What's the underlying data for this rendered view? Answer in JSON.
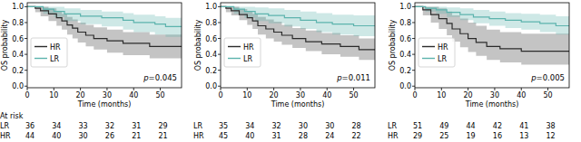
{
  "chart_data": [
    {
      "type": "line",
      "x_label": "Time (months)",
      "y_label": "OS probability",
      "annotation": "p=0.045",
      "legend": "center left",
      "xlim": [
        0,
        58
      ],
      "xticks": [
        0,
        10,
        20,
        30,
        40,
        50
      ],
      "ylim": [
        -0.02,
        1.05
      ],
      "yticks": [
        {
          "value": 0,
          "label": "0.0"
        },
        {
          "value": 0.2,
          "label": "0.2"
        },
        {
          "value": 0.4,
          "label": "0.4"
        },
        {
          "value": 0.6,
          "label": "0.6"
        },
        {
          "value": 0.8,
          "label": "0.8"
        },
        {
          "value": 1,
          "label": "1.0"
        }
      ],
      "series": [
        {
          "name": "HR",
          "color": "#2b2b2b",
          "line_style": "step",
          "x": [
            0,
            3,
            5,
            8,
            11,
            13,
            15,
            17,
            19,
            22,
            25,
            30,
            36,
            46,
            58
          ],
          "values": [
            1.0,
            0.98,
            0.95,
            0.91,
            0.86,
            0.82,
            0.77,
            0.73,
            0.68,
            0.64,
            0.6,
            0.57,
            0.54,
            0.5,
            0.5
          ],
          "lower": [
            1.0,
            0.93,
            0.88,
            0.82,
            0.76,
            0.71,
            0.65,
            0.6,
            0.55,
            0.5,
            0.46,
            0.42,
            0.39,
            0.35,
            0.35
          ],
          "upper": [
            1.0,
            1.0,
            1.0,
            0.98,
            0.94,
            0.91,
            0.87,
            0.84,
            0.8,
            0.77,
            0.74,
            0.71,
            0.68,
            0.65,
            0.65
          ]
        },
        {
          "name": "LR",
          "color": "#5cb3ad",
          "line_style": "step",
          "x": [
            0,
            6,
            10,
            14,
            20,
            28,
            36,
            40,
            48,
            52,
            58
          ],
          "values": [
            1.0,
            0.97,
            0.94,
            0.91,
            0.88,
            0.86,
            0.83,
            0.8,
            0.78,
            0.75,
            0.75
          ],
          "lower": [
            1.0,
            0.91,
            0.87,
            0.82,
            0.78,
            0.75,
            0.71,
            0.68,
            0.65,
            0.62,
            0.62
          ],
          "upper": [
            1.0,
            1.0,
            1.0,
            0.98,
            0.96,
            0.94,
            0.92,
            0.9,
            0.88,
            0.86,
            0.86
          ]
        }
      ],
      "at_risk": {
        "title": "At risk",
        "x": [
          0,
          10,
          20,
          30,
          40,
          50
        ],
        "rows": [
          {
            "name": "LR",
            "values": [
              36,
              34,
              33,
              32,
              31,
              29
            ]
          },
          {
            "name": "HR",
            "values": [
              44,
              40,
              30,
              26,
              21,
              21
            ]
          }
        ]
      }
    },
    {
      "type": "line",
      "x_label": "Time (months)",
      "y_label": "OS probability",
      "annotation": "p=0.011",
      "legend": "center left",
      "xlim": [
        0,
        58
      ],
      "xticks": [
        0,
        10,
        20,
        30,
        40,
        50
      ],
      "ylim": [
        -0.02,
        1.05
      ],
      "yticks": [
        {
          "value": 0,
          "label": "0.0"
        },
        {
          "value": 0.2,
          "label": "0.2"
        },
        {
          "value": 0.4,
          "label": "0.4"
        },
        {
          "value": 0.6,
          "label": "0.6"
        },
        {
          "value": 0.8,
          "label": "0.8"
        },
        {
          "value": 1,
          "label": "1.0"
        }
      ],
      "series": [
        {
          "name": "HR",
          "color": "#2b2b2b",
          "line_style": "step",
          "x": [
            0,
            2,
            4,
            7,
            10,
            12,
            14,
            17,
            20,
            23,
            27,
            32,
            38,
            45,
            52,
            58
          ],
          "values": [
            1.0,
            0.98,
            0.95,
            0.9,
            0.86,
            0.82,
            0.76,
            0.72,
            0.68,
            0.64,
            0.6,
            0.56,
            0.53,
            0.5,
            0.46,
            0.46
          ],
          "lower": [
            1.0,
            0.93,
            0.89,
            0.83,
            0.77,
            0.72,
            0.65,
            0.6,
            0.56,
            0.52,
            0.48,
            0.44,
            0.4,
            0.37,
            0.33,
            0.33
          ],
          "upper": [
            1.0,
            1.0,
            1.0,
            0.97,
            0.94,
            0.91,
            0.87,
            0.84,
            0.81,
            0.77,
            0.73,
            0.7,
            0.67,
            0.64,
            0.6,
            0.6
          ]
        },
        {
          "name": "LR",
          "color": "#5cb3ad",
          "line_style": "step",
          "x": [
            0,
            5,
            9,
            13,
            18,
            24,
            30,
            36,
            42,
            50,
            58
          ],
          "values": [
            1.0,
            0.97,
            0.94,
            0.91,
            0.89,
            0.86,
            0.83,
            0.8,
            0.78,
            0.76,
            0.76
          ],
          "lower": [
            1.0,
            0.91,
            0.86,
            0.82,
            0.79,
            0.75,
            0.72,
            0.68,
            0.65,
            0.63,
            0.63
          ],
          "upper": [
            1.0,
            1.0,
            1.0,
            0.99,
            0.98,
            0.96,
            0.94,
            0.92,
            0.9,
            0.89,
            0.89
          ]
        }
      ],
      "at_risk": {
        "x": [
          0,
          10,
          20,
          30,
          40,
          50
        ],
        "rows": [
          {
            "name": "LR",
            "values": [
              35,
              34,
              32,
              30,
              30,
              28
            ]
          },
          {
            "name": "HR",
            "values": [
              45,
              40,
              31,
              28,
              24,
              22
            ]
          }
        ]
      }
    },
    {
      "type": "line",
      "x_label": "Time (months)",
      "y_label": "OS probability",
      "annotation": "p=0.005",
      "legend": "center left",
      "xlim": [
        0,
        58
      ],
      "xticks": [
        0,
        10,
        20,
        30,
        40,
        50
      ],
      "ylim": [
        -0.02,
        1.05
      ],
      "yticks": [
        {
          "value": 0,
          "label": "0.0"
        },
        {
          "value": 0.2,
          "label": "0.2"
        },
        {
          "value": 0.4,
          "label": "0.4"
        },
        {
          "value": 0.6,
          "label": "0.6"
        },
        {
          "value": 0.8,
          "label": "0.8"
        },
        {
          "value": 1,
          "label": "1.0"
        }
      ],
      "series": [
        {
          "name": "HR",
          "color": "#2b2b2b",
          "line_style": "step",
          "x": [
            0,
            3,
            6,
            9,
            12,
            14,
            17,
            20,
            23,
            27,
            32,
            40,
            58
          ],
          "values": [
            1.0,
            0.96,
            0.9,
            0.85,
            0.79,
            0.72,
            0.66,
            0.6,
            0.55,
            0.5,
            0.47,
            0.44,
            0.44
          ],
          "lower": [
            1.0,
            0.89,
            0.8,
            0.72,
            0.64,
            0.56,
            0.49,
            0.43,
            0.38,
            0.33,
            0.3,
            0.27,
            0.27
          ],
          "upper": [
            1.0,
            1.0,
            1.0,
            0.98,
            0.94,
            0.89,
            0.85,
            0.8,
            0.76,
            0.71,
            0.68,
            0.66,
            0.66
          ]
        },
        {
          "name": "LR",
          "color": "#5cb3ad",
          "line_style": "step",
          "x": [
            0,
            4,
            8,
            12,
            17,
            22,
            28,
            34,
            40,
            47,
            53,
            58
          ],
          "values": [
            1.0,
            0.98,
            0.96,
            0.93,
            0.9,
            0.87,
            0.85,
            0.83,
            0.81,
            0.79,
            0.76,
            0.76
          ],
          "lower": [
            1.0,
            0.94,
            0.91,
            0.87,
            0.83,
            0.79,
            0.76,
            0.73,
            0.71,
            0.68,
            0.65,
            0.65
          ],
          "upper": [
            1.0,
            1.0,
            1.0,
            0.99,
            0.98,
            0.96,
            0.94,
            0.92,
            0.91,
            0.9,
            0.88,
            0.88
          ]
        }
      ],
      "at_risk": {
        "x": [
          0,
          10,
          20,
          30,
          40,
          50
        ],
        "rows": [
          {
            "name": "LR",
            "values": [
              51,
              49,
              44,
              42,
              41,
              38
            ]
          },
          {
            "name": "HR",
            "values": [
              29,
              25,
              19,
              16,
              13,
              12
            ]
          }
        ]
      }
    }
  ]
}
